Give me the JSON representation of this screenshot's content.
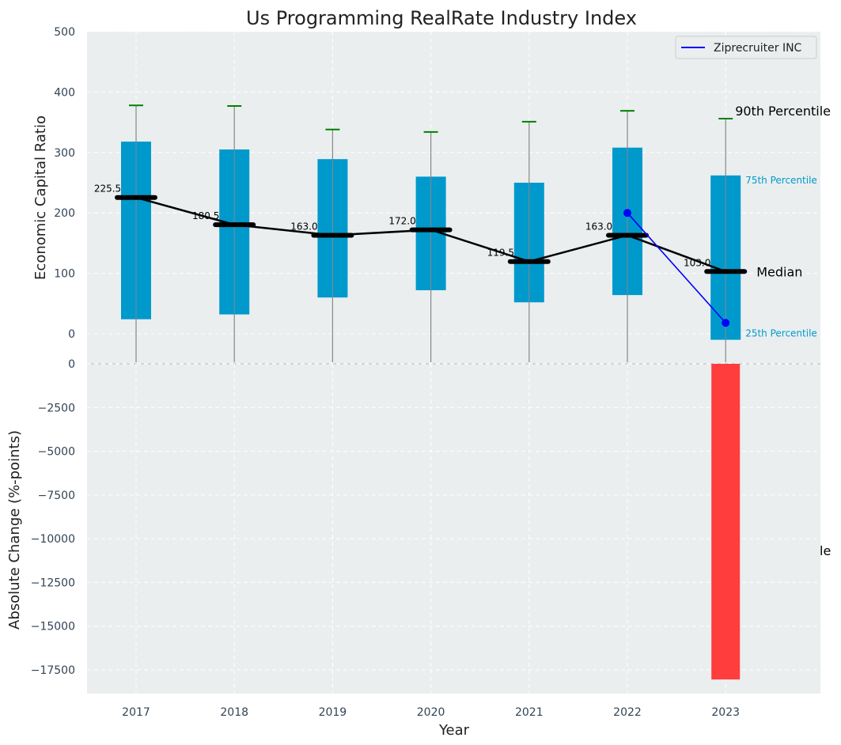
{
  "chart_data": [
    {
      "type": "box",
      "title": "Us Programming RealRate Industry Index",
      "ylabel": "Economic Capital Ratio",
      "xlabel": "",
      "ylim": [
        -50,
        500
      ],
      "yticks": [
        0,
        100,
        200,
        300,
        400,
        500
      ],
      "grid": true,
      "categories": [
        "2017",
        "2018",
        "2019",
        "2020",
        "2021",
        "2022",
        "2023"
      ],
      "p25": [
        24,
        32,
        60,
        72,
        52,
        64,
        -10
      ],
      "p75": [
        318,
        305,
        289,
        260,
        250,
        308,
        262
      ],
      "p90": [
        378,
        377,
        338,
        334,
        351,
        369,
        356
      ],
      "whisker_low": [
        -50,
        -50,
        -50,
        -50,
        -50,
        -50,
        -50
      ],
      "median": [
        225.5,
        180.5,
        163.0,
        172.0,
        119.5,
        163.0,
        103.0
      ],
      "median_labels": [
        "225.5",
        "180.5",
        "163.0",
        "172.0",
        "119.5",
        "163.0",
        "103.0"
      ],
      "company": {
        "name": "Ziprecruiter INC",
        "categories": [
          "2022",
          "2023"
        ],
        "values": [
          200,
          18
        ]
      },
      "legend": {
        "placement": "top-right",
        "entries": [
          "Ziprecruiter INC"
        ]
      },
      "annotations": {
        "p90": "90th Percentile",
        "p75": "75th Percentile",
        "median": "Median",
        "p25": "25th Percentile"
      }
    },
    {
      "type": "bar",
      "xlabel": "Year",
      "ylabel": "Absolute Change (%-points)",
      "ylim": [
        -19000,
        0
      ],
      "yticks": [
        0,
        -2500,
        -5000,
        -7500,
        -10000,
        -12500,
        -15000,
        -17500
      ],
      "ytick_labels": [
        "0",
        "−2500",
        "−5000",
        "−7500",
        "−10000",
        "−12500",
        "−15000",
        "−17500"
      ],
      "grid": true,
      "categories": [
        "2017",
        "2018",
        "2019",
        "2020",
        "2021",
        "2022",
        "2023"
      ],
      "values": [
        0,
        0,
        0,
        0,
        0,
        0,
        -18050
      ],
      "cut_off_text": "le"
    }
  ],
  "colors": {
    "panel_bg": "#eaeeef",
    "box": "#0099cc",
    "median": "#000000",
    "whisker": "#888888",
    "p90_cap": "#008000",
    "company": "#0000ff",
    "negative_bar": "#ff3d3d",
    "tick_text": "#334455",
    "p75_label": "#0099cc"
  }
}
